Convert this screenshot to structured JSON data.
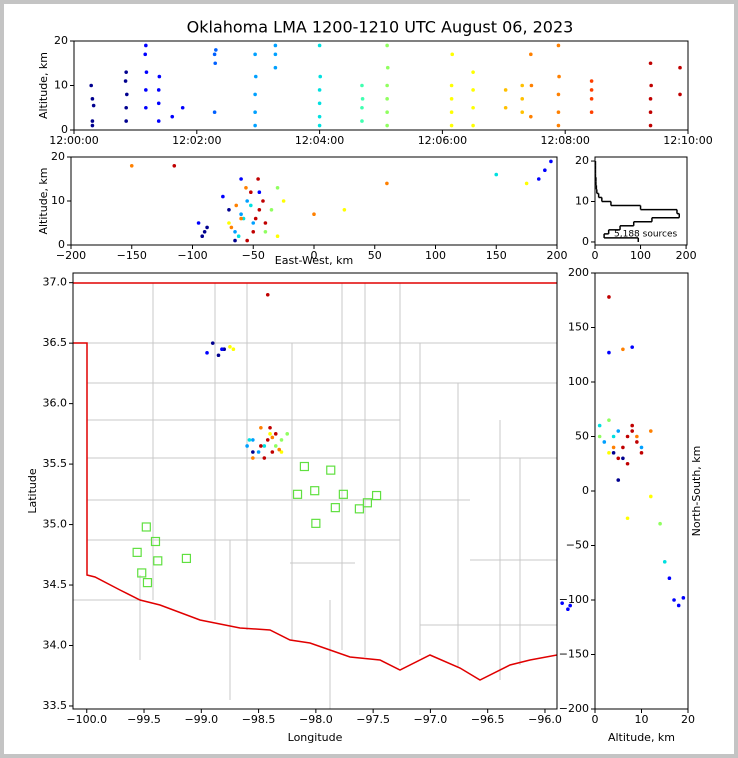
{
  "chart_data": [
    {
      "type": "scatter",
      "title": "Oklahoma LMA 1200-1210 UTC August 06, 2023",
      "ylabel": "Altitude, km",
      "xlim": [
        0,
        10
      ],
      "ylim": [
        0,
        20
      ],
      "xticks": [
        {
          "value": 0,
          "label": "12:00:00"
        },
        {
          "value": 2,
          "label": "12:02:00"
        },
        {
          "value": 4,
          "label": "12:04:00"
        },
        {
          "value": 6,
          "label": "12:06:00"
        },
        {
          "value": 8,
          "label": "12:08:00"
        },
        {
          "value": 10,
          "label": "12:10:00"
        }
      ],
      "yticks": [
        0,
        10,
        20
      ],
      "series": [
        {
          "color": "#00008f",
          "x": [
            0.3,
            0.3,
            0.32,
            0.3,
            0.28,
            0.85,
            0.85,
            0.86,
            0.84,
            0.85
          ],
          "values": [
            1,
            2,
            5.5,
            7,
            10,
            2,
            5,
            8,
            11,
            13
          ]
        },
        {
          "color": "#0000ff",
          "x": [
            1.17,
            1.17,
            1.18,
            1.16,
            1.17,
            1.38,
            1.38,
            1.38,
            1.39,
            1.6,
            1.77
          ],
          "values": [
            5,
            9,
            13,
            17,
            19,
            2,
            6,
            9,
            12,
            3,
            5
          ]
        },
        {
          "color": "#0060ff",
          "x": [
            2.3,
            2.29,
            2.31,
            2.29
          ],
          "values": [
            15,
            17,
            18,
            4
          ]
        },
        {
          "color": "#00a0ff",
          "x": [
            2.95,
            2.95,
            2.95,
            2.96,
            2.95,
            3.28,
            3.28,
            3.28
          ],
          "values": [
            1,
            4,
            8,
            12,
            17,
            14,
            17,
            19
          ]
        },
        {
          "color": "#00e0e0",
          "x": [
            4.0,
            4.0,
            4.0,
            4.0,
            4.01,
            4.0
          ],
          "values": [
            1,
            3,
            6,
            9,
            12,
            19
          ]
        },
        {
          "color": "#40ffb0",
          "x": [
            4.69,
            4.69,
            4.7,
            4.69
          ],
          "values": [
            2,
            5,
            7,
            10
          ]
        },
        {
          "color": "#90ff60",
          "x": [
            5.1,
            5.1,
            5.1,
            5.1,
            5.11,
            5.1
          ],
          "values": [
            1,
            4,
            7,
            10,
            14,
            19
          ]
        },
        {
          "color": "#ffff00",
          "x": [
            6.15,
            6.15,
            6.15,
            6.15,
            6.16,
            6.5,
            6.5,
            6.5,
            6.5
          ],
          "values": [
            1,
            4,
            7,
            10,
            17,
            1,
            5,
            9,
            13
          ]
        },
        {
          "color": "#ffc000",
          "x": [
            7.03,
            7.03,
            7.3,
            7.3,
            7.3
          ],
          "values": [
            5,
            9,
            4,
            7,
            10
          ]
        },
        {
          "color": "#ff8000",
          "x": [
            7.44,
            7.45,
            7.44,
            7.89,
            7.89,
            7.89,
            7.9,
            7.89
          ],
          "values": [
            3,
            10,
            17,
            1,
            4,
            8,
            12,
            19
          ]
        },
        {
          "color": "#ff4000",
          "x": [
            8.43,
            8.43,
            8.43,
            8.43
          ],
          "values": [
            4,
            7,
            9,
            11
          ]
        },
        {
          "color": "#c00000",
          "x": [
            9.39,
            9.39,
            9.39,
            9.4,
            9.39,
            9.87,
            9.87
          ],
          "values": [
            1,
            4,
            7,
            10,
            15,
            8,
            14
          ]
        }
      ]
    },
    {
      "type": "scatter",
      "xlabel": "East-West, km",
      "ylabel": "Altitude, km",
      "xlim": [
        -200,
        200
      ],
      "ylim": [
        0,
        20
      ],
      "xticks": [
        {
          "value": -200,
          "label": "−200"
        },
        {
          "value": -150,
          "label": "−150"
        },
        {
          "value": -100,
          "label": "−100"
        },
        {
          "value": -50,
          "label": "−50"
        },
        0,
        50,
        100,
        150,
        200
      ],
      "yticks": [
        0,
        10,
        20
      ],
      "series": [
        {
          "color": "#00008f",
          "x": [
            -92,
            -90,
            -88,
            -70,
            -65
          ],
          "values": [
            2,
            3,
            4,
            8,
            1
          ]
        },
        {
          "color": "#0000ff",
          "x": [
            -95,
            -75,
            -60,
            -45,
            190,
            195,
            185
          ],
          "values": [
            5,
            11,
            15,
            12,
            17,
            19,
            15
          ]
        },
        {
          "color": "#00a0ff",
          "x": [
            -65,
            -60,
            -55,
            -50
          ],
          "values": [
            3,
            7,
            10,
            5
          ]
        },
        {
          "color": "#00e0e0",
          "x": [
            -62,
            -58,
            -52,
            150
          ],
          "values": [
            2,
            6,
            9,
            16
          ]
        },
        {
          "color": "#90ff60",
          "x": [
            -40,
            -35,
            -30
          ],
          "values": [
            3,
            8,
            13
          ]
        },
        {
          "color": "#ffff00",
          "x": [
            -70,
            -30,
            -25,
            25,
            175
          ],
          "values": [
            5,
            2,
            10,
            8,
            14
          ]
        },
        {
          "color": "#ff8000",
          "x": [
            -68,
            -64,
            -60,
            -56,
            -150,
            60,
            0
          ],
          "values": [
            4,
            9,
            6,
            13,
            18,
            14,
            7
          ]
        },
        {
          "color": "#c00000",
          "x": [
            -55,
            -50,
            -48,
            -45,
            -42,
            -40,
            -52,
            -46,
            -115
          ],
          "values": [
            1,
            3,
            6,
            8,
            10,
            5,
            12,
            15,
            18
          ]
        }
      ]
    },
    {
      "type": "histogram",
      "orientation": "horizontal",
      "annotation": "5,188 sources",
      "color": "#000000",
      "xlim": [
        0,
        202
      ],
      "ylim": [
        -0.75,
        21
      ],
      "xticks": [
        0,
        100,
        200
      ],
      "yticks": [
        0,
        10,
        20
      ],
      "bins": [
        0,
        1,
        2,
        3,
        4,
        5,
        6,
        7,
        8,
        9,
        10,
        11,
        12,
        13,
        14,
        15,
        16,
        17,
        18,
        19,
        20
      ],
      "values": [
        95,
        20,
        30,
        55,
        85,
        125,
        185,
        180,
        100,
        35,
        15,
        8,
        4,
        3,
        2,
        2,
        1,
        1,
        1,
        1
      ]
    },
    {
      "type": "scatter",
      "xlabel": "Longitude",
      "ylabel": "Latitude",
      "xlim": [
        -100.12,
        -95.895
      ],
      "ylim": [
        33.475,
        37.08
      ],
      "xticks": [
        {
          "value": -100,
          "label": "−100.0"
        },
        {
          "value": -99.5,
          "label": "−99.5"
        },
        {
          "value": -99,
          "label": "−99.0"
        },
        {
          "value": -98.5,
          "label": "−98.5"
        },
        {
          "value": -98,
          "label": "−98.0"
        },
        {
          "value": -97.5,
          "label": "−97.5"
        },
        {
          "value": -97,
          "label": "−97.0"
        },
        {
          "value": -96.5,
          "label": "−96.5"
        },
        {
          "value": -96,
          "label": "−96.0"
        }
      ],
      "yticks": [
        {
          "value": 33.5,
          "label": "33.5"
        },
        {
          "value": 34,
          "label": "34.0"
        },
        {
          "value": 34.5,
          "label": "34.5"
        },
        {
          "value": 35,
          "label": "35.0"
        },
        {
          "value": 35.5,
          "label": "35.5"
        },
        {
          "value": 36,
          "label": "36.0"
        },
        {
          "value": 36.5,
          "label": "36.5"
        },
        {
          "value": 37,
          "label": "37.0"
        }
      ],
      "series": [
        {
          "color": "#00008f",
          "x": [
            -98.8,
            -98.9,
            -98.85,
            -98.55
          ],
          "values": [
            36.45,
            36.5,
            36.4,
            35.6
          ]
        },
        {
          "color": "#0000ff",
          "x": [
            -98.95,
            -98.82,
            -95.85,
            -95.8,
            -95.78
          ],
          "values": [
            36.42,
            36.45,
            34.35,
            34.3,
            34.33
          ]
        },
        {
          "color": "#00a0ff",
          "x": [
            -98.6,
            -98.55,
            -98.5
          ],
          "values": [
            35.65,
            35.7,
            35.6
          ]
        },
        {
          "color": "#00e0e0",
          "x": [
            -98.58,
            -98.45
          ],
          "values": [
            35.7,
            35.65
          ]
        },
        {
          "color": "#90ff60",
          "x": [
            -98.3,
            -98.25,
            -98.35
          ],
          "values": [
            35.7,
            35.75,
            35.65
          ]
        },
        {
          "color": "#ffff00",
          "x": [
            -98.75,
            -98.72,
            -98.4,
            -98.3
          ],
          "values": [
            36.47,
            36.45,
            35.75,
            35.6
          ]
        },
        {
          "color": "#ff8000",
          "x": [
            -98.55,
            -98.48,
            -98.38,
            -98.32
          ],
          "values": [
            35.55,
            35.8,
            35.72,
            35.62
          ]
        },
        {
          "color": "#c00000",
          "x": [
            -98.48,
            -98.42,
            -98.4,
            -98.35,
            -98.38,
            -98.45,
            -98.42
          ],
          "values": [
            35.65,
            35.7,
            35.8,
            35.75,
            35.6,
            35.55,
            36.9
          ]
        },
        {
          "color": "#60e040",
          "marker": "square",
          "x": [
            -99.48,
            -99.4,
            -99.38,
            -99.56,
            -99.52,
            -99.47,
            -99.13,
            -98.16,
            -98.1,
            -98.01,
            -98.0,
            -97.87,
            -97.83,
            -97.76,
            -97.62,
            -97.55,
            -97.47
          ],
          "values": [
            34.98,
            34.86,
            34.7,
            34.77,
            34.6,
            34.52,
            34.72,
            35.25,
            35.48,
            35.28,
            35.01,
            35.45,
            35.14,
            35.25,
            35.13,
            35.18,
            35.24
          ]
        }
      ]
    },
    {
      "type": "scatter",
      "xlabel": "Altitude, km",
      "ylabel": "North-South, km",
      "ylabel_side": "right",
      "xlim": [
        0,
        20
      ],
      "ylim": [
        -200,
        200
      ],
      "xticks": [
        0,
        10,
        20
      ],
      "yticks": [
        {
          "value": -200,
          "label": "−200"
        },
        {
          "value": -150,
          "label": "−150"
        },
        {
          "value": -100,
          "label": "−100"
        },
        {
          "value": -50,
          "label": "−50"
        },
        0,
        50,
        100,
        150,
        200
      ],
      "series": [
        {
          "color": "#00008f",
          "x": [
            4,
            6,
            5
          ],
          "values": [
            35,
            30,
            10
          ]
        },
        {
          "color": "#0000ff",
          "x": [
            3,
            8,
            17,
            18,
            19,
            16
          ],
          "values": [
            127,
            132,
            -100,
            -105,
            -98,
            -80
          ]
        },
        {
          "color": "#00a0ff",
          "x": [
            2,
            5,
            10
          ],
          "values": [
            45,
            55,
            40
          ]
        },
        {
          "color": "#00e0e0",
          "x": [
            1,
            4,
            15
          ],
          "values": [
            60,
            50,
            -65
          ]
        },
        {
          "color": "#90ff60",
          "x": [
            1,
            3,
            14
          ],
          "values": [
            50,
            65,
            -30
          ]
        },
        {
          "color": "#ffff00",
          "x": [
            3,
            7,
            12
          ],
          "values": [
            35,
            -25,
            -5
          ]
        },
        {
          "color": "#ff8000",
          "x": [
            4,
            6,
            9,
            12
          ],
          "values": [
            40,
            130,
            50,
            55
          ]
        },
        {
          "color": "#c00000",
          "x": [
            5,
            6,
            7,
            8,
            9,
            10,
            7,
            8,
            3
          ],
          "values": [
            30,
            40,
            50,
            55,
            45,
            35,
            25,
            60,
            178
          ]
        }
      ]
    }
  ]
}
